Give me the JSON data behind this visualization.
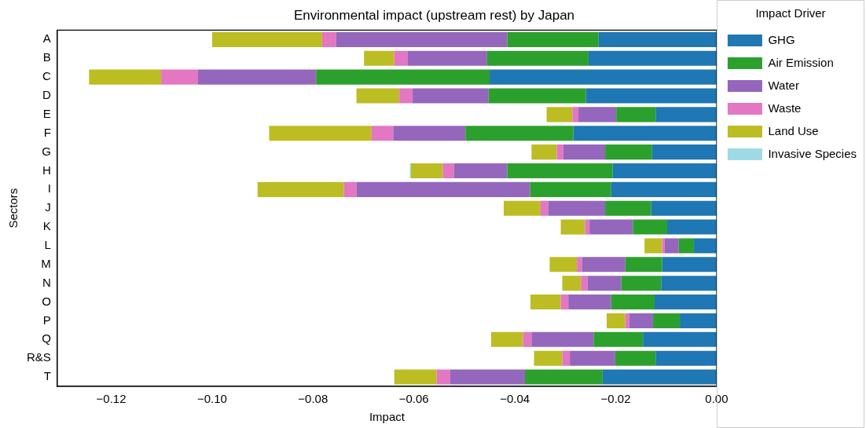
{
  "chart_data": {
    "type": "bar",
    "title": "Environmental impact (upstream rest) by Japan",
    "xlabel": "Impact",
    "ylabel": "Sectors",
    "legend_title": "Impact Driver",
    "orientation": "horizontal",
    "stacked": true,
    "grid": false,
    "legend": "right",
    "categories": [
      "A",
      "B",
      "C",
      "D",
      "E",
      "F",
      "G",
      "H",
      "I",
      "J",
      "K",
      "L",
      "M",
      "N",
      "O",
      "P",
      "Q",
      "R&S",
      "T"
    ],
    "xlim": [
      -0.1307,
      0
    ],
    "xticks": [
      {
        "value": -0.12,
        "label": "−0.12"
      },
      {
        "value": -0.1,
        "label": "−0.10"
      },
      {
        "value": -0.08,
        "label": "−0.08"
      },
      {
        "value": -0.06,
        "label": "−0.06"
      },
      {
        "value": -0.04,
        "label": "−0.04"
      },
      {
        "value": -0.02,
        "label": "−0.02"
      },
      {
        "value": 0,
        "label": "0.00"
      }
    ],
    "series": [
      {
        "name": "GHG",
        "color": "#1f77b4",
        "values": [
          -0.0234,
          -0.0254,
          -0.045,
          -0.0259,
          -0.0121,
          -0.0284,
          -0.0128,
          -0.0206,
          -0.0209,
          -0.013,
          -0.0098,
          -0.0045,
          -0.0108,
          -0.011,
          -0.0123,
          -0.0073,
          -0.0146,
          -0.0121,
          -0.0226
        ]
      },
      {
        "name": "Air Emission",
        "color": "#2ca02c",
        "values": [
          -0.0181,
          -0.0201,
          -0.0344,
          -0.0193,
          -0.0078,
          -0.0214,
          -0.0093,
          -0.0209,
          -0.0161,
          -0.0091,
          -0.0068,
          -0.003,
          -0.0073,
          -0.0079,
          -0.0086,
          -0.0053,
          -0.0098,
          -0.008,
          -0.0154
        ]
      },
      {
        "name": "Water",
        "color": "#9467bd",
        "values": [
          -0.0339,
          -0.0158,
          -0.0234,
          -0.0151,
          -0.0075,
          -0.0143,
          -0.0083,
          -0.0106,
          -0.0344,
          -0.0113,
          -0.0086,
          -0.0028,
          -0.0086,
          -0.0067,
          -0.0085,
          -0.0047,
          -0.0123,
          -0.009,
          -0.0148
        ]
      },
      {
        "name": "Waste",
        "color": "#e377c2",
        "values": [
          -0.0028,
          -0.0026,
          -0.0073,
          -0.0026,
          -0.0012,
          -0.0043,
          -0.0013,
          -0.0022,
          -0.0025,
          -0.0015,
          -0.0009,
          -0.0005,
          -0.001,
          -0.0013,
          -0.0015,
          -0.0008,
          -0.0017,
          -0.0015,
          -0.0027
        ]
      },
      {
        "name": "Land Use",
        "color": "#bcbd22",
        "values": [
          -0.0218,
          -0.006,
          -0.0143,
          -0.0085,
          -0.0051,
          -0.0203,
          -0.005,
          -0.0063,
          -0.0171,
          -0.0073,
          -0.0048,
          -0.0035,
          -0.0054,
          -0.0037,
          -0.006,
          -0.0037,
          -0.0063,
          -0.0056,
          -0.0084
        ]
      },
      {
        "name": "Invasive Species",
        "color": "#9edae5",
        "values": [
          0,
          0,
          0,
          0,
          0,
          0,
          0,
          -0.0002,
          0,
          0,
          0,
          0,
          0,
          0,
          0,
          0,
          0,
          0,
          0
        ]
      }
    ]
  }
}
